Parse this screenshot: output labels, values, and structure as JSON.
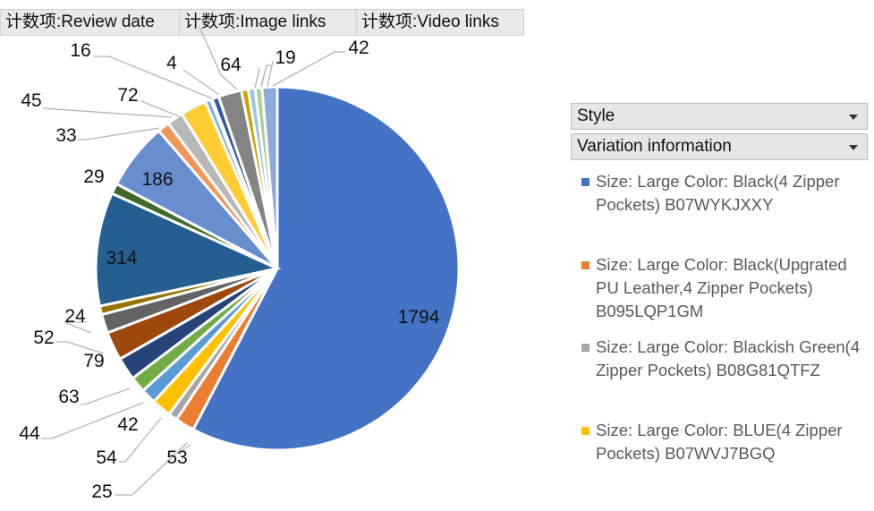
{
  "pivot_fields": {
    "review_date": "计数项:Review date",
    "image_links": "计数项:Image links",
    "video_links": "计数项:Video links"
  },
  "slicers": {
    "style": "Style",
    "variation": "Variation information"
  },
  "legend": [
    {
      "label": "Size: Large Color: Black(4 Zipper Pockets) B07WYKJXXY",
      "color": "#4472c4"
    },
    {
      "label": "Size: Large Color: Black(Upgrated PU Leather,4 Zipper Pockets) B095LQP1GM",
      "color": "#ed7d31"
    },
    {
      "label": "Size: Large Color: Blackish Green(4 Zipper Pockets) B08G81QTFZ",
      "color": "#a5a5a5"
    },
    {
      "label": "Size: Large Color: BLUE(4 Zipper Pockets) B07WVJ7BGQ",
      "color": "#ffc000"
    }
  ],
  "chart_data": {
    "type": "pie",
    "slices": [
      {
        "value": 1794,
        "color": "#4472c4"
      },
      {
        "value": 53,
        "color": "#ed7d31"
      },
      {
        "value": 25,
        "color": "#a5a5a5"
      },
      {
        "value": 54,
        "color": "#ffc000"
      },
      {
        "value": 42,
        "color": "#5b9bd5"
      },
      {
        "value": 44,
        "color": "#70ad47"
      },
      {
        "value": 63,
        "color": "#264478"
      },
      {
        "value": 79,
        "color": "#9e480e"
      },
      {
        "value": 52,
        "color": "#636363"
      },
      {
        "value": 24,
        "color": "#997300"
      },
      {
        "value": 314,
        "color": "#255e91"
      },
      {
        "value": 29,
        "color": "#43682b"
      },
      {
        "value": 186,
        "color": "#698ed0"
      },
      {
        "value": 33,
        "color": "#f1975a"
      },
      {
        "value": 45,
        "color": "#b7b7b7"
      },
      {
        "value": 72,
        "color": "#ffcd33"
      },
      {
        "value": 16,
        "color": "#7cafdd"
      },
      {
        "value": 4,
        "color": "#8cc168"
      },
      {
        "value": 19,
        "color": "#335aa1"
      },
      {
        "value": 64,
        "color": "#848484"
      },
      {
        "value": 19,
        "color": "#cca300"
      },
      {
        "value": 19,
        "color": "#9dc3e6"
      },
      {
        "value": 19,
        "color": "#a9d18e"
      },
      {
        "value": 42,
        "color": "#8faadc"
      }
    ],
    "data_labels": [
      "1794",
      "53",
      "25",
      "54",
      "42",
      "44",
      "63",
      "79",
      "52",
      "24",
      "314",
      "29",
      "186",
      "33",
      "45",
      "72",
      "16",
      "4",
      "64",
      "19",
      "42"
    ],
    "legend_placement": "right"
  }
}
